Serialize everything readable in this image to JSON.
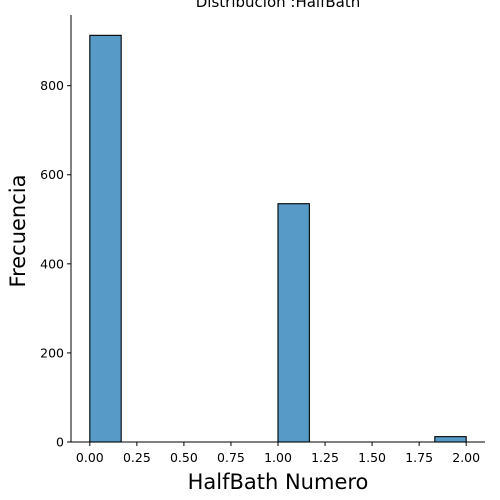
{
  "chart_data": {
    "type": "bar",
    "title": "Distribución :HalfBath",
    "xlabel": "HalfBath Numero",
    "ylabel": "Frecuencia",
    "bins": [
      {
        "x0": 0.0,
        "x1": 0.1667,
        "value": 913
      },
      {
        "x0": 0.1667,
        "x1": 0.3333,
        "value": 0
      },
      {
        "x0": 0.3333,
        "x1": 0.5,
        "value": 0
      },
      {
        "x0": 0.5,
        "x1": 0.6667,
        "value": 0
      },
      {
        "x0": 0.6667,
        "x1": 0.8333,
        "value": 0
      },
      {
        "x0": 0.8333,
        "x1": 1.0,
        "value": 0
      },
      {
        "x0": 1.0,
        "x1": 1.1667,
        "value": 535
      },
      {
        "x0": 1.1667,
        "x1": 1.3333,
        "value": 0
      },
      {
        "x0": 1.3333,
        "x1": 1.5,
        "value": 0
      },
      {
        "x0": 1.5,
        "x1": 1.6667,
        "value": 0
      },
      {
        "x0": 1.6667,
        "x1": 1.8333,
        "value": 0
      },
      {
        "x0": 1.8333,
        "x1": 2.0,
        "value": 12
      }
    ],
    "x_ticks": [
      0.0,
      0.25,
      0.5,
      0.75,
      1.0,
      1.25,
      1.5,
      1.75,
      2.0
    ],
    "x_tick_labels": [
      "0.00",
      "0.25",
      "0.50",
      "0.75",
      "1.00",
      "1.25",
      "1.50",
      "1.75",
      "2.00"
    ],
    "y_ticks": [
      0,
      200,
      400,
      600,
      800
    ],
    "y_tick_labels": [
      "0",
      "200",
      "400",
      "600",
      "800"
    ],
    "xlim": [
      -0.1,
      2.1
    ],
    "ylim": [
      0,
      958.65
    ],
    "bar_color": "#5799c7",
    "edge_color": "#000000",
    "grid": false,
    "spines": [
      "left",
      "bottom"
    ]
  }
}
